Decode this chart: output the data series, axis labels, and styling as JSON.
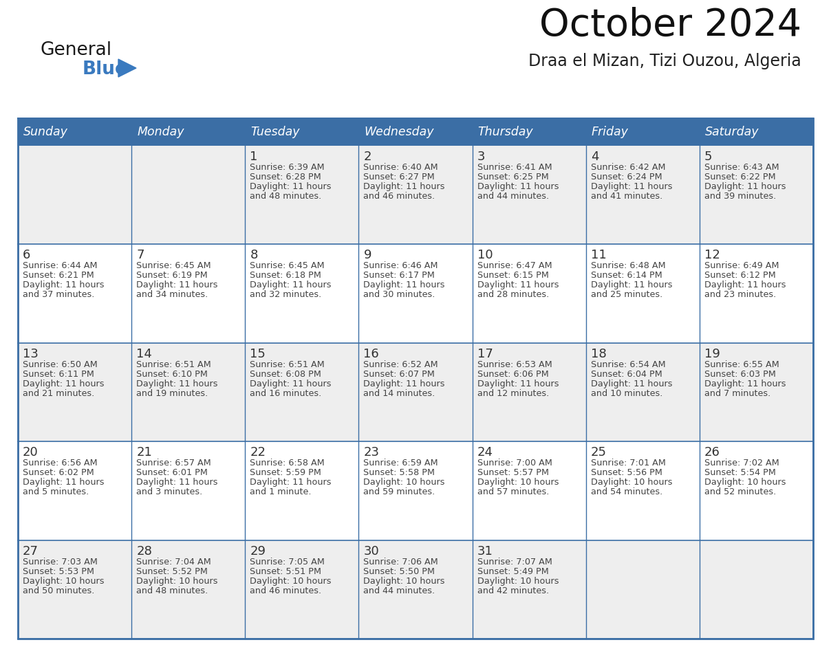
{
  "title": "October 2024",
  "subtitle": "Draa el Mizan, Tizi Ouzou, Algeria",
  "header_color": "#3B6EA5",
  "header_text_color": "#FFFFFF",
  "cell_bg_odd": "#FFFFFF",
  "cell_bg_even": "#EEEEEE",
  "border_color": "#3B6EA5",
  "text_color": "#444444",
  "day_num_color": "#333333",
  "days_of_week": [
    "Sunday",
    "Monday",
    "Tuesday",
    "Wednesday",
    "Thursday",
    "Friday",
    "Saturday"
  ],
  "calendar": [
    [
      {
        "day": "",
        "sunrise": "",
        "sunset": "",
        "daylight": ""
      },
      {
        "day": "",
        "sunrise": "",
        "sunset": "",
        "daylight": ""
      },
      {
        "day": "1",
        "sunrise": "6:39 AM",
        "sunset": "6:28 PM",
        "daylight": "11 hours\nand 48 minutes."
      },
      {
        "day": "2",
        "sunrise": "6:40 AM",
        "sunset": "6:27 PM",
        "daylight": "11 hours\nand 46 minutes."
      },
      {
        "day": "3",
        "sunrise": "6:41 AM",
        "sunset": "6:25 PM",
        "daylight": "11 hours\nand 44 minutes."
      },
      {
        "day": "4",
        "sunrise": "6:42 AM",
        "sunset": "6:24 PM",
        "daylight": "11 hours\nand 41 minutes."
      },
      {
        "day": "5",
        "sunrise": "6:43 AM",
        "sunset": "6:22 PM",
        "daylight": "11 hours\nand 39 minutes."
      }
    ],
    [
      {
        "day": "6",
        "sunrise": "6:44 AM",
        "sunset": "6:21 PM",
        "daylight": "11 hours\nand 37 minutes."
      },
      {
        "day": "7",
        "sunrise": "6:45 AM",
        "sunset": "6:19 PM",
        "daylight": "11 hours\nand 34 minutes."
      },
      {
        "day": "8",
        "sunrise": "6:45 AM",
        "sunset": "6:18 PM",
        "daylight": "11 hours\nand 32 minutes."
      },
      {
        "day": "9",
        "sunrise": "6:46 AM",
        "sunset": "6:17 PM",
        "daylight": "11 hours\nand 30 minutes."
      },
      {
        "day": "10",
        "sunrise": "6:47 AM",
        "sunset": "6:15 PM",
        "daylight": "11 hours\nand 28 minutes."
      },
      {
        "day": "11",
        "sunrise": "6:48 AM",
        "sunset": "6:14 PM",
        "daylight": "11 hours\nand 25 minutes."
      },
      {
        "day": "12",
        "sunrise": "6:49 AM",
        "sunset": "6:12 PM",
        "daylight": "11 hours\nand 23 minutes."
      }
    ],
    [
      {
        "day": "13",
        "sunrise": "6:50 AM",
        "sunset": "6:11 PM",
        "daylight": "11 hours\nand 21 minutes."
      },
      {
        "day": "14",
        "sunrise": "6:51 AM",
        "sunset": "6:10 PM",
        "daylight": "11 hours\nand 19 minutes."
      },
      {
        "day": "15",
        "sunrise": "6:51 AM",
        "sunset": "6:08 PM",
        "daylight": "11 hours\nand 16 minutes."
      },
      {
        "day": "16",
        "sunrise": "6:52 AM",
        "sunset": "6:07 PM",
        "daylight": "11 hours\nand 14 minutes."
      },
      {
        "day": "17",
        "sunrise": "6:53 AM",
        "sunset": "6:06 PM",
        "daylight": "11 hours\nand 12 minutes."
      },
      {
        "day": "18",
        "sunrise": "6:54 AM",
        "sunset": "6:04 PM",
        "daylight": "11 hours\nand 10 minutes."
      },
      {
        "day": "19",
        "sunrise": "6:55 AM",
        "sunset": "6:03 PM",
        "daylight": "11 hours\nand 7 minutes."
      }
    ],
    [
      {
        "day": "20",
        "sunrise": "6:56 AM",
        "sunset": "6:02 PM",
        "daylight": "11 hours\nand 5 minutes."
      },
      {
        "day": "21",
        "sunrise": "6:57 AM",
        "sunset": "6:01 PM",
        "daylight": "11 hours\nand 3 minutes."
      },
      {
        "day": "22",
        "sunrise": "6:58 AM",
        "sunset": "5:59 PM",
        "daylight": "11 hours\nand 1 minute."
      },
      {
        "day": "23",
        "sunrise": "6:59 AM",
        "sunset": "5:58 PM",
        "daylight": "10 hours\nand 59 minutes."
      },
      {
        "day": "24",
        "sunrise": "7:00 AM",
        "sunset": "5:57 PM",
        "daylight": "10 hours\nand 57 minutes."
      },
      {
        "day": "25",
        "sunrise": "7:01 AM",
        "sunset": "5:56 PM",
        "daylight": "10 hours\nand 54 minutes."
      },
      {
        "day": "26",
        "sunrise": "7:02 AM",
        "sunset": "5:54 PM",
        "daylight": "10 hours\nand 52 minutes."
      }
    ],
    [
      {
        "day": "27",
        "sunrise": "7:03 AM",
        "sunset": "5:53 PM",
        "daylight": "10 hours\nand 50 minutes."
      },
      {
        "day": "28",
        "sunrise": "7:04 AM",
        "sunset": "5:52 PM",
        "daylight": "10 hours\nand 48 minutes."
      },
      {
        "day": "29",
        "sunrise": "7:05 AM",
        "sunset": "5:51 PM",
        "daylight": "10 hours\nand 46 minutes."
      },
      {
        "day": "30",
        "sunrise": "7:06 AM",
        "sunset": "5:50 PM",
        "daylight": "10 hours\nand 44 minutes."
      },
      {
        "day": "31",
        "sunrise": "7:07 AM",
        "sunset": "5:49 PM",
        "daylight": "10 hours\nand 42 minutes."
      },
      {
        "day": "",
        "sunrise": "",
        "sunset": "",
        "daylight": ""
      },
      {
        "day": "",
        "sunrise": "",
        "sunset": "",
        "daylight": ""
      }
    ]
  ],
  "logo_color_general": "#1a1a1a",
  "logo_color_blue": "#3a7abf",
  "logo_triangle_color": "#3a7abf"
}
